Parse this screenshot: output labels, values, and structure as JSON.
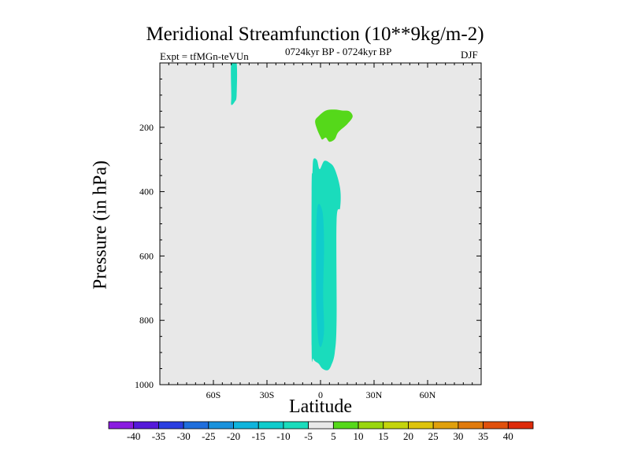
{
  "header": {
    "title": "Meridional Streamfunction (10**9kg/m-2)",
    "left_label": "Expt = tfMGn-teVUn",
    "center_label": "0724kyr BP - 0724kyr BP",
    "right_label": "DJF"
  },
  "chart_data": {
    "type": "heatmap",
    "title": "Meridional Streamfunction (10**9kg/m-2)",
    "xlabel": "Latitude",
    "ylabel": "Pressure (in hPa)",
    "xlim": [
      -90,
      90
    ],
    "ylim": [
      1000,
      0
    ],
    "y_reversed": true,
    "x_ticks": [
      {
        "value": -60,
        "label": "60S"
      },
      {
        "value": -30,
        "label": "30S"
      },
      {
        "value": 0,
        "label": "0"
      },
      {
        "value": 30,
        "label": "30N"
      },
      {
        "value": 60,
        "label": "60N"
      }
    ],
    "y_ticks": [
      {
        "value": 200,
        "label": "200"
      },
      {
        "value": 400,
        "label": "400"
      },
      {
        "value": 600,
        "label": "600"
      },
      {
        "value": 800,
        "label": "800"
      },
      {
        "value": 1000,
        "label": "1000"
      }
    ],
    "background_color": "#e8e8e8",
    "colorbar": {
      "levels": [
        -40,
        -35,
        -30,
        -25,
        -20,
        -15,
        -10,
        -5,
        5,
        10,
        15,
        20,
        25,
        30,
        35,
        40
      ],
      "colors": [
        "#8a1be0",
        "#5519d9",
        "#2a3ee0",
        "#1f6edc",
        "#1a92dc",
        "#10b4dc",
        "#10cccc",
        "#1adcbc",
        "#e8e8e8",
        "#55d81a",
        "#99d60e",
        "#c4d40c",
        "#ddc30c",
        "#e0a00c",
        "#e07a0c",
        "#e0500c",
        "#dd2a0a"
      ]
    },
    "regions": [
      {
        "name": "tropical cell",
        "color": "#1adcbc",
        "outline": [
          [
            -4,
            300
          ],
          [
            -2,
            302
          ],
          [
            -0.5,
            330
          ],
          [
            2,
            305
          ],
          [
            5,
            310
          ],
          [
            8,
            330
          ],
          [
            11,
            390
          ],
          [
            11,
            450
          ],
          [
            9,
            490
          ],
          [
            9,
            800
          ],
          [
            8,
            900
          ],
          [
            6,
            940
          ],
          [
            4,
            955
          ],
          [
            1,
            950
          ],
          [
            -1,
            935
          ],
          [
            -4,
            920
          ],
          [
            -5,
            880
          ],
          [
            -5,
            400
          ],
          [
            -4.5,
            340
          ]
        ]
      },
      {
        "name": "tropical core",
        "color": "#10cccc",
        "outline": [
          [
            -2,
            460
          ],
          [
            1,
            460
          ],
          [
            2,
            560
          ],
          [
            1.5,
            720
          ],
          [
            2,
            830
          ],
          [
            0.5,
            880
          ],
          [
            -1,
            870
          ],
          [
            -2,
            800
          ],
          [
            -2.5,
            700
          ]
        ]
      },
      {
        "name": "southern upper cell",
        "color": "#1adcbc",
        "outline": [
          [
            -50,
            0
          ],
          [
            -47,
            0
          ],
          [
            -47,
            100
          ],
          [
            -48,
            120
          ],
          [
            -50,
            130
          ],
          [
            -50,
            100
          ]
        ]
      },
      {
        "name": "upper positive cell",
        "color": "#55d81a",
        "outline": [
          [
            -3,
            180
          ],
          [
            -1,
            165
          ],
          [
            3,
            148
          ],
          [
            8,
            145
          ],
          [
            12,
            148
          ],
          [
            16,
            150
          ],
          [
            18,
            167
          ],
          [
            15,
            190
          ],
          [
            10,
            215
          ],
          [
            8,
            237
          ],
          [
            5,
            245
          ],
          [
            3,
            232
          ],
          [
            1,
            238
          ],
          [
            0,
            230
          ],
          [
            -2,
            205
          ]
        ]
      }
    ]
  }
}
